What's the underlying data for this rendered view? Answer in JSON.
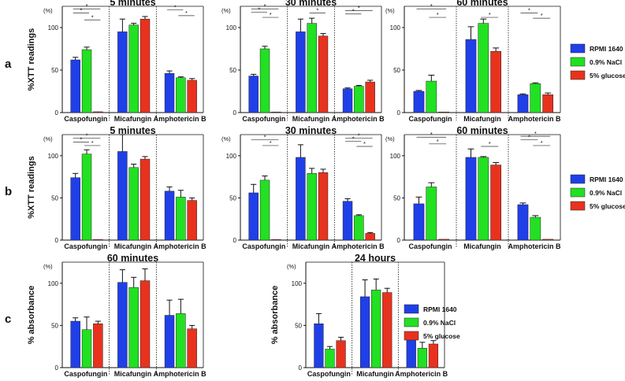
{
  "colors": {
    "RPMI 1640": "#1f3fe8",
    "0.9% NaCl": "#22e022",
    "5% glucose": "#e8321e"
  },
  "row_labels": {
    "a": "a",
    "b": "b",
    "c": "c"
  },
  "legend": {
    "a": [
      "RPMI 1640",
      "0.9% NaCl",
      "5% glucose"
    ],
    "b": [
      "RPMI 1640",
      "0.9% NaCl",
      "5% glucose"
    ],
    "c": [
      "RPMI 1640",
      "0.9% NaCl",
      "5% glucose"
    ]
  },
  "sig_marker": "*",
  "chart_data": [
    {
      "id": "a1",
      "row": "a",
      "type": "bar",
      "title": "5 minutes",
      "ylabel": "%XTT readings",
      "unit_label": "(%)",
      "ylim": [
        0,
        125
      ],
      "yticks": [
        0,
        50,
        100
      ],
      "categories": [
        "Caspofungin",
        "Micafungin",
        "Amphotericin B"
      ],
      "series": [
        {
          "name": "RPMI 1640",
          "values": [
            62,
            95,
            46
          ],
          "errors": [
            3,
            15,
            3
          ]
        },
        {
          "name": "0.9% NaCl",
          "values": [
            74,
            103,
            41
          ],
          "errors": [
            3,
            2,
            1
          ]
        },
        {
          "name": "5% glucose",
          "values": [
            1,
            110,
            38
          ],
          "errors": [
            0,
            3,
            2
          ]
        }
      ]
    },
    {
      "id": "a2",
      "row": "a",
      "type": "bar",
      "title": "30 minutes",
      "ylabel": "",
      "unit_label": "(%)",
      "ylim": [
        0,
        125
      ],
      "yticks": [
        0,
        50,
        100
      ],
      "categories": [
        "Caspofungin",
        "Micafungin",
        "Amphotericin B"
      ],
      "series": [
        {
          "name": "RPMI 1640",
          "values": [
            43,
            95,
            28
          ],
          "errors": [
            2,
            15,
            1
          ]
        },
        {
          "name": "0.9% NaCl",
          "values": [
            75,
            105,
            31
          ],
          "errors": [
            3,
            6,
            1
          ]
        },
        {
          "name": "5% glucose",
          "values": [
            0,
            90,
            36
          ],
          "errors": [
            0,
            3,
            2
          ]
        }
      ]
    },
    {
      "id": "a3",
      "row": "a",
      "type": "bar",
      "title": "60 minutes",
      "ylabel": "",
      "unit_label": "(%)",
      "ylim": [
        0,
        125
      ],
      "yticks": [
        0,
        50,
        100
      ],
      "categories": [
        "Caspofungin",
        "Micafungin",
        "Amphotericin B"
      ],
      "series": [
        {
          "name": "RPMI 1640",
          "values": [
            25,
            86,
            21
          ],
          "errors": [
            1,
            15,
            1
          ]
        },
        {
          "name": "0.9% NaCl",
          "values": [
            37,
            105,
            34
          ],
          "errors": [
            7,
            5,
            1
          ]
        },
        {
          "name": "5% glucose",
          "values": [
            0,
            72,
            21
          ],
          "errors": [
            0,
            4,
            2
          ]
        }
      ]
    },
    {
      "id": "b1",
      "row": "b",
      "type": "bar",
      "title": "5 minutes",
      "ylabel": "%XTT readings",
      "unit_label": "(%)",
      "ylim": [
        0,
        125
      ],
      "yticks": [
        0,
        50,
        100
      ],
      "categories": [
        "Caspofungin",
        "Micafungin",
        "Amphotericin B"
      ],
      "series": [
        {
          "name": "RPMI 1640",
          "values": [
            74,
            105,
            58
          ],
          "errors": [
            5,
            20,
            5
          ]
        },
        {
          "name": "0.9% NaCl",
          "values": [
            102,
            86,
            51
          ],
          "errors": [
            5,
            4,
            8
          ]
        },
        {
          "name": "5% glucose",
          "values": [
            0,
            96,
            47
          ],
          "errors": [
            0,
            3,
            3
          ]
        }
      ]
    },
    {
      "id": "b2",
      "row": "b",
      "type": "bar",
      "title": "30 minutes",
      "ylabel": "",
      "unit_label": "(%)",
      "ylim": [
        0,
        125
      ],
      "yticks": [
        0,
        50,
        100
      ],
      "categories": [
        "Caspofungin",
        "Micafungin",
        "Amphotericin B"
      ],
      "series": [
        {
          "name": "RPMI 1640",
          "values": [
            56,
            98,
            46
          ],
          "errors": [
            10,
            15,
            3
          ]
        },
        {
          "name": "0.9% NaCl",
          "values": [
            71,
            79,
            29
          ],
          "errors": [
            5,
            6,
            1
          ]
        },
        {
          "name": "5% glucose",
          "values": [
            0,
            80,
            8
          ],
          "errors": [
            0,
            4,
            1
          ]
        }
      ]
    },
    {
      "id": "b3",
      "row": "b",
      "type": "bar",
      "title": "60 minutes",
      "ylabel": "",
      "unit_label": "(%)",
      "ylim": [
        0,
        125
      ],
      "yticks": [
        0,
        50,
        100
      ],
      "categories": [
        "Caspofungin",
        "Micafungin",
        "Amphotericin B"
      ],
      "series": [
        {
          "name": "RPMI 1640",
          "values": [
            43,
            98,
            42
          ],
          "errors": [
            8,
            10,
            2
          ]
        },
        {
          "name": "0.9% NaCl",
          "values": [
            63,
            98,
            27
          ],
          "errors": [
            5,
            1,
            2
          ]
        },
        {
          "name": "5% glucose",
          "values": [
            1,
            89,
            1
          ],
          "errors": [
            0,
            3,
            0
          ]
        }
      ]
    },
    {
      "id": "c1",
      "row": "c",
      "type": "bar",
      "title": "60 minutes",
      "ylabel": "% absorbance",
      "unit_label": "(%)",
      "ylim": [
        0,
        125
      ],
      "yticks": [
        0,
        50,
        100
      ],
      "categories": [
        "Caspofungin",
        "Micafungin",
        "Amphotericin B"
      ],
      "series": [
        {
          "name": "RPMI 1640",
          "values": [
            55,
            101,
            62
          ],
          "errors": [
            4,
            15,
            18
          ]
        },
        {
          "name": "0.9% NaCl",
          "values": [
            45,
            95,
            64
          ],
          "errors": [
            15,
            12,
            17
          ]
        },
        {
          "name": "5% glucose",
          "values": [
            52,
            103,
            46
          ],
          "errors": [
            3,
            14,
            4
          ]
        }
      ]
    },
    {
      "id": "c2",
      "row": "c",
      "type": "bar",
      "title": "24 hours",
      "ylabel": "% absorbance",
      "unit_label": "(%)",
      "ylim": [
        0,
        125
      ],
      "yticks": [
        0,
        50,
        100
      ],
      "categories": [
        "Caspofungin",
        "Micafungin",
        "Amphotericin B"
      ],
      "series": [
        {
          "name": "RPMI 1640",
          "values": [
            52,
            84,
            33
          ],
          "errors": [
            12,
            20,
            4
          ]
        },
        {
          "name": "0.9% NaCl",
          "values": [
            22,
            92,
            23
          ],
          "errors": [
            3,
            13,
            7
          ]
        },
        {
          "name": "5% glucose",
          "values": [
            32,
            89,
            28
          ],
          "errors": [
            4,
            5,
            4
          ]
        }
      ]
    }
  ]
}
